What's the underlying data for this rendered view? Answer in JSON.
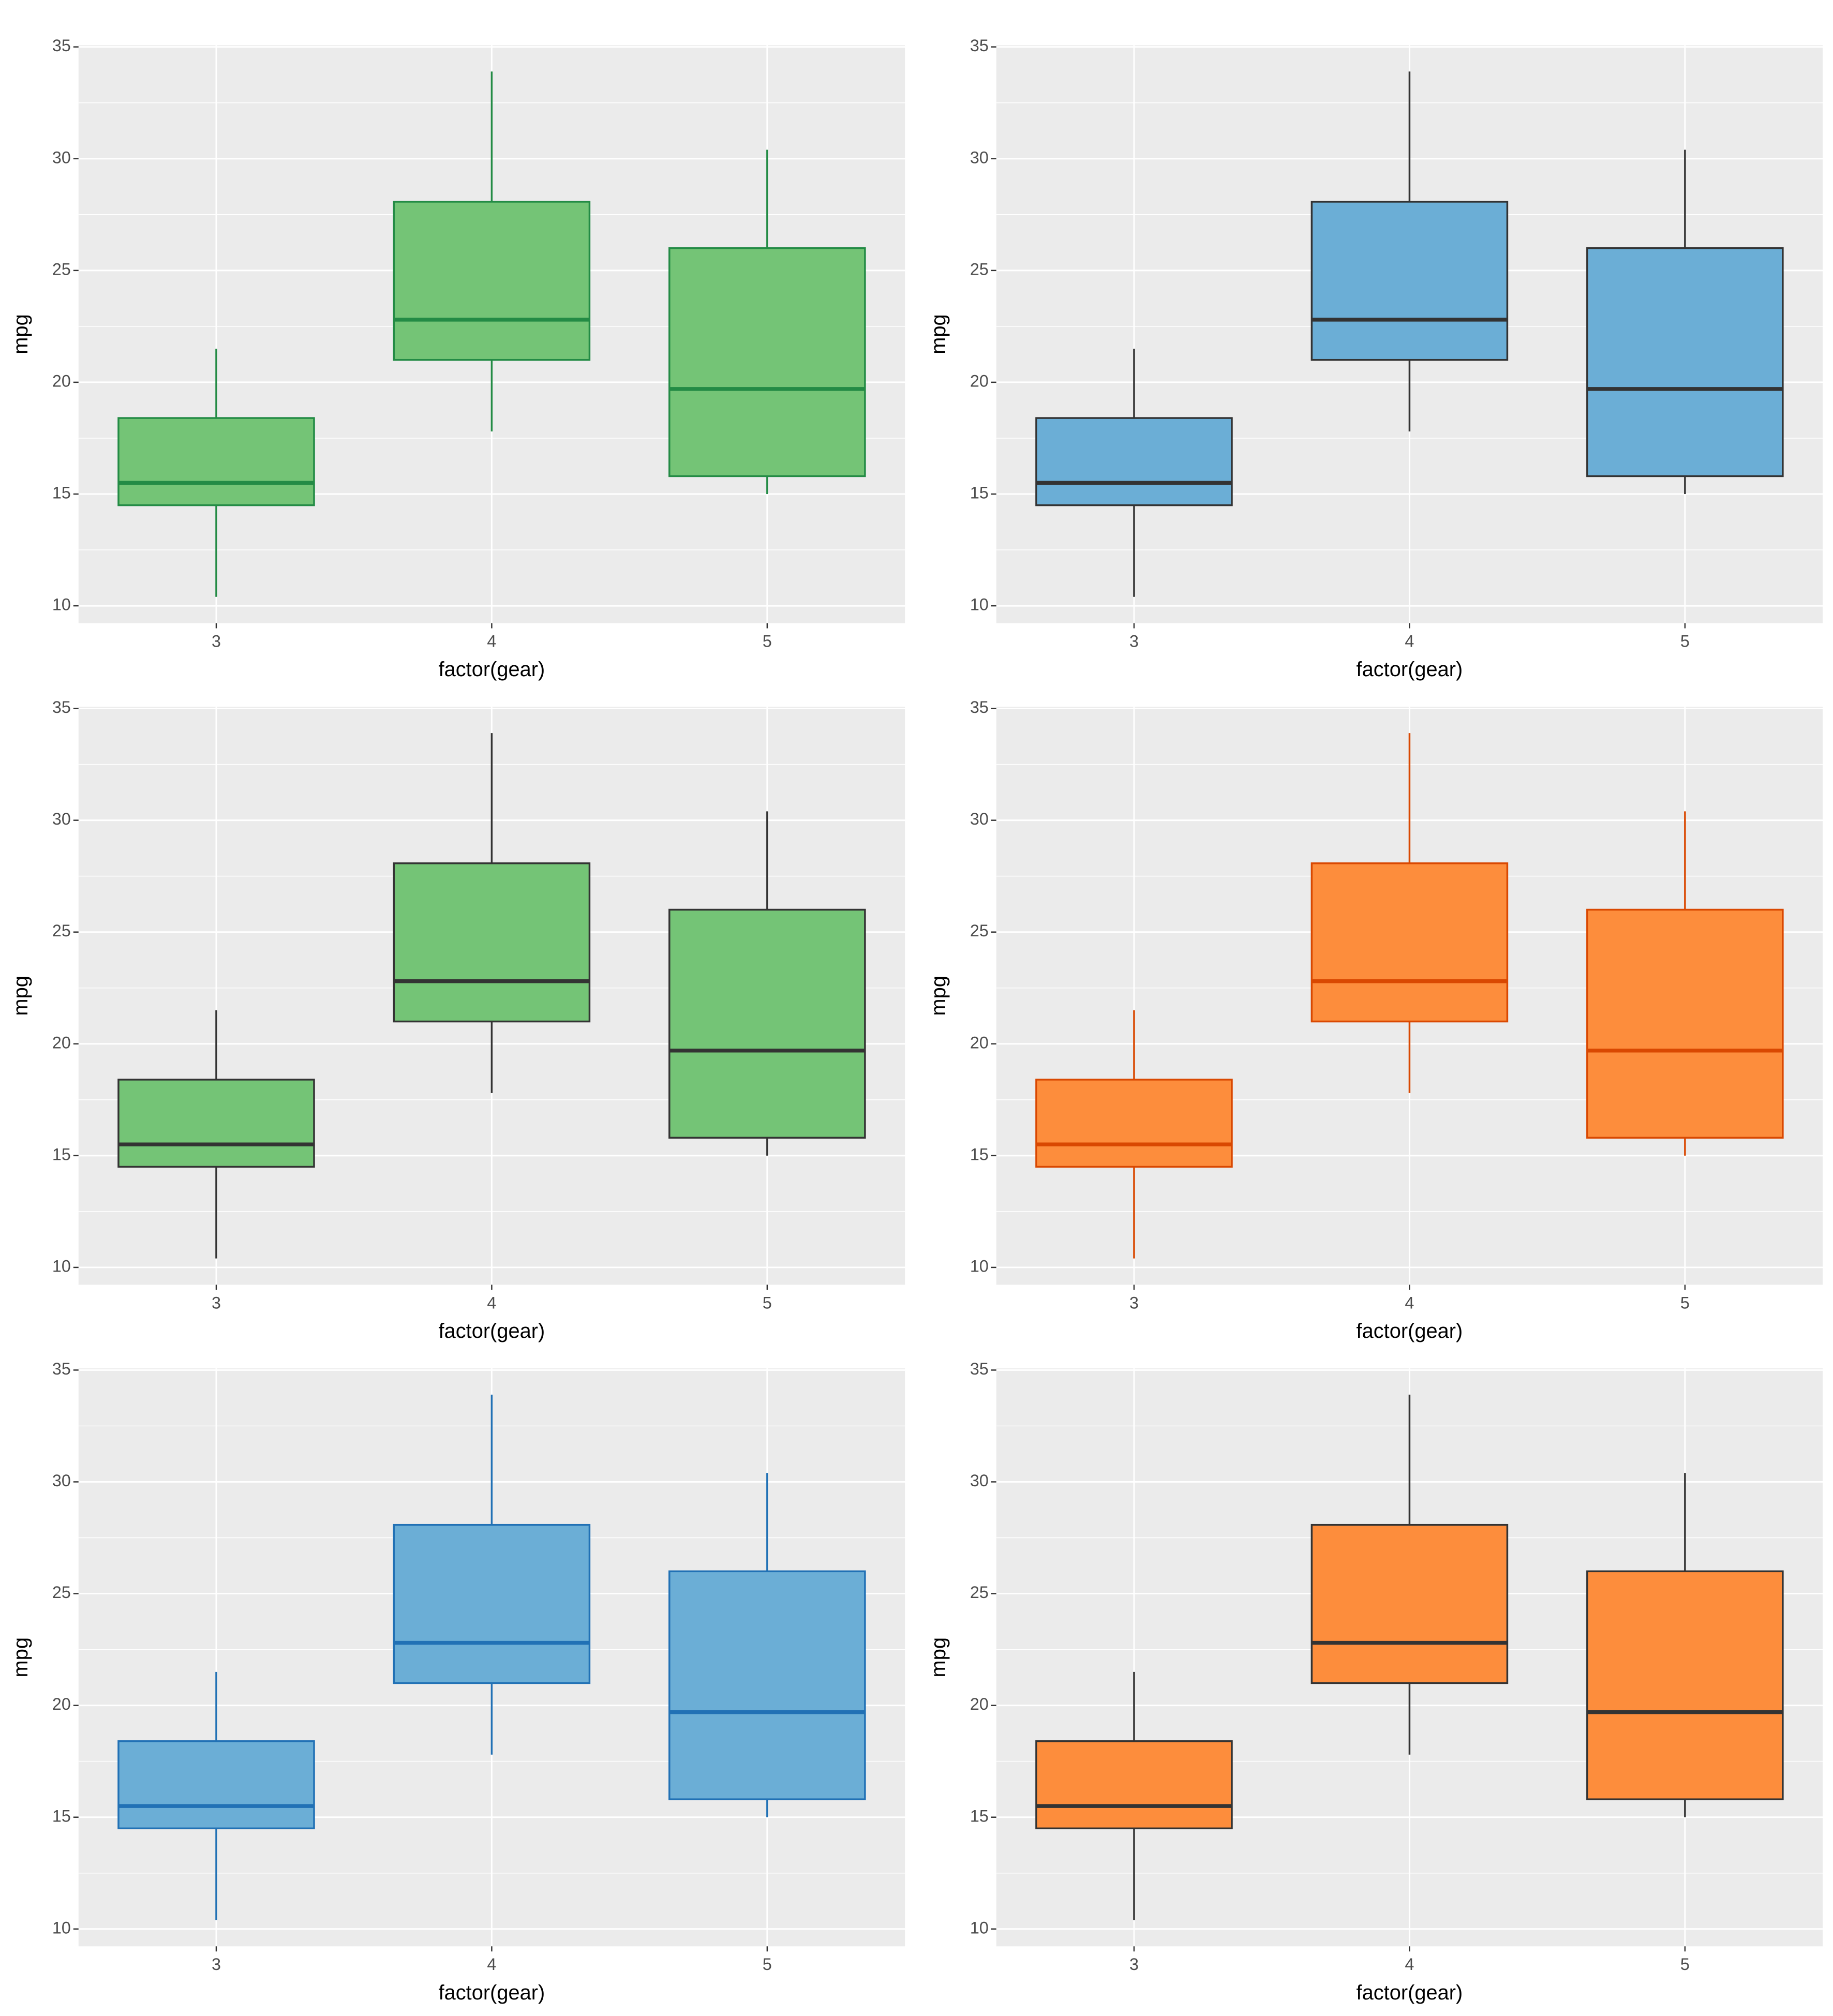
{
  "chart_data": [
    {
      "type": "box",
      "categories": [
        "3",
        "4",
        "5"
      ],
      "xlabel": "factor(gear)",
      "ylabel": "mpg",
      "fill": "#74c476",
      "line_color": "#238b45",
      "min": [
        10.4,
        17.8,
        15.0
      ],
      "q1": [
        14.5,
        21.0,
        15.8
      ],
      "median": [
        15.5,
        22.8,
        19.7
      ],
      "q3": [
        18.4,
        28.075,
        26.0
      ],
      "max": [
        21.5,
        33.9,
        30.4
      ],
      "ylim": [
        9.225,
        35.075
      ],
      "yticks": [
        10,
        15,
        20,
        25,
        30,
        35
      ],
      "grid": true
    },
    {
      "type": "box",
      "categories": [
        "3",
        "4",
        "5"
      ],
      "xlabel": "factor(gear)",
      "ylabel": "mpg",
      "fill": "#6baed6",
      "line_color": "#333333",
      "min": [
        10.4,
        17.8,
        15.0
      ],
      "q1": [
        14.5,
        21.0,
        15.8
      ],
      "median": [
        15.5,
        22.8,
        19.7
      ],
      "q3": [
        18.4,
        28.075,
        26.0
      ],
      "max": [
        21.5,
        33.9,
        30.4
      ],
      "ylim": [
        9.225,
        35.075
      ],
      "yticks": [
        10,
        15,
        20,
        25,
        30,
        35
      ],
      "grid": true
    },
    {
      "type": "box",
      "categories": [
        "3",
        "4",
        "5"
      ],
      "xlabel": "factor(gear)",
      "ylabel": "mpg",
      "fill": "#74c476",
      "line_color": "#333333",
      "min": [
        10.4,
        17.8,
        15.0
      ],
      "q1": [
        14.5,
        21.0,
        15.8
      ],
      "median": [
        15.5,
        22.8,
        19.7
      ],
      "q3": [
        18.4,
        28.075,
        26.0
      ],
      "max": [
        21.5,
        33.9,
        30.4
      ],
      "ylim": [
        9.225,
        35.075
      ],
      "yticks": [
        10,
        15,
        20,
        25,
        30,
        35
      ],
      "grid": true
    },
    {
      "type": "box",
      "categories": [
        "3",
        "4",
        "5"
      ],
      "xlabel": "factor(gear)",
      "ylabel": "mpg",
      "fill": "#fd8d3c",
      "line_color": "#d94801",
      "min": [
        10.4,
        17.8,
        15.0
      ],
      "q1": [
        14.5,
        21.0,
        15.8
      ],
      "median": [
        15.5,
        22.8,
        19.7
      ],
      "q3": [
        18.4,
        28.075,
        26.0
      ],
      "max": [
        21.5,
        33.9,
        30.4
      ],
      "ylim": [
        9.225,
        35.075
      ],
      "yticks": [
        10,
        15,
        20,
        25,
        30,
        35
      ],
      "grid": true
    },
    {
      "type": "box",
      "categories": [
        "3",
        "4",
        "5"
      ],
      "xlabel": "factor(gear)",
      "ylabel": "mpg",
      "fill": "#6baed6",
      "line_color": "#2171b5",
      "min": [
        10.4,
        17.8,
        15.0
      ],
      "q1": [
        14.5,
        21.0,
        15.8
      ],
      "median": [
        15.5,
        22.8,
        19.7
      ],
      "q3": [
        18.4,
        28.075,
        26.0
      ],
      "max": [
        21.5,
        33.9,
        30.4
      ],
      "ylim": [
        9.225,
        35.075
      ],
      "yticks": [
        10,
        15,
        20,
        25,
        30,
        35
      ],
      "grid": true
    },
    {
      "type": "box",
      "categories": [
        "3",
        "4",
        "5"
      ],
      "xlabel": "factor(gear)",
      "ylabel": "mpg",
      "fill": "#fd8d3c",
      "line_color": "#333333",
      "min": [
        10.4,
        17.8,
        15.0
      ],
      "q1": [
        14.5,
        21.0,
        15.8
      ],
      "median": [
        15.5,
        22.8,
        19.7
      ],
      "q3": [
        18.4,
        28.075,
        26.0
      ],
      "max": [
        21.5,
        33.9,
        30.4
      ],
      "ylim": [
        9.225,
        35.075
      ],
      "yticks": [
        10,
        15,
        20,
        25,
        30,
        35
      ],
      "grid": true
    }
  ]
}
